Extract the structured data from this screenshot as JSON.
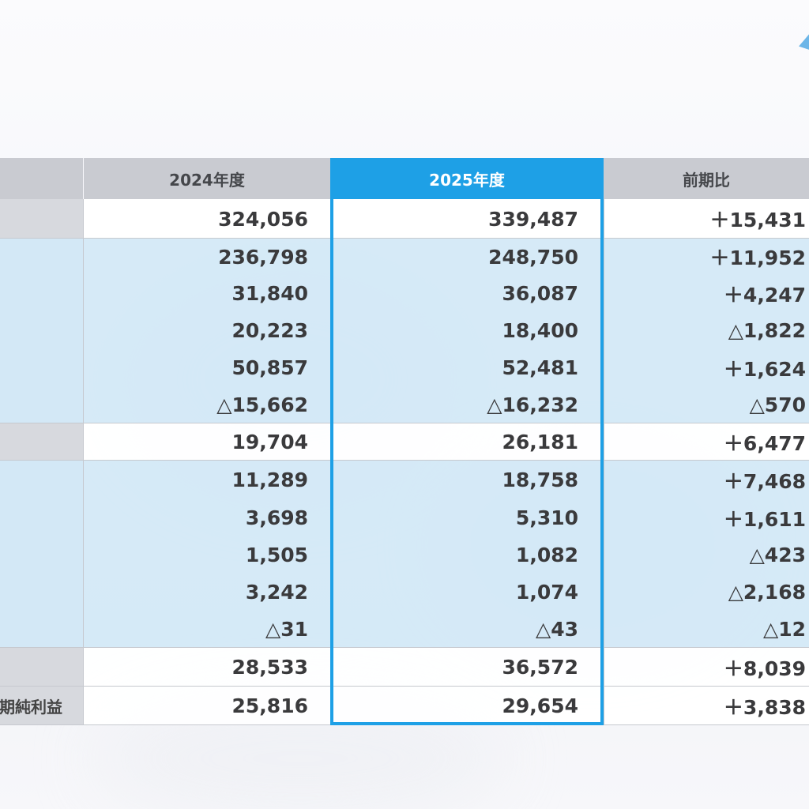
{
  "table": {
    "columns": [
      "",
      "2024年度",
      "2025年度",
      "前期比"
    ],
    "rows": [
      {
        "label": "",
        "y2024": "324,056",
        "y2025": "339,487",
        "diff": "＋15,431",
        "style": "white"
      },
      {
        "label": "",
        "y2024": "236,798",
        "y2025": "248,750",
        "diff": "＋11,952",
        "style": "blue"
      },
      {
        "label": "",
        "y2024": "31,840",
        "y2025": "36,087",
        "diff": "＋4,247",
        "style": "blue"
      },
      {
        "label": "",
        "y2024": "20,223",
        "y2025": "18,400",
        "diff": "△1,822",
        "style": "blue"
      },
      {
        "label": "",
        "y2024": "50,857",
        "y2025": "52,481",
        "diff": "＋1,624",
        "style": "blue"
      },
      {
        "label": "",
        "y2024": "△15,662",
        "y2025": "△16,232",
        "diff": "△570",
        "style": "blue"
      },
      {
        "label": "",
        "y2024": "19,704",
        "y2025": "26,181",
        "diff": "＋6,477",
        "style": "white"
      },
      {
        "label": "",
        "y2024": "11,289",
        "y2025": "18,758",
        "diff": "＋7,468",
        "style": "blue"
      },
      {
        "label": "",
        "y2024": "3,698",
        "y2025": "5,310",
        "diff": "＋1,611",
        "style": "blue"
      },
      {
        "label": "",
        "y2024": "1,505",
        "y2025": "1,082",
        "diff": "△423",
        "style": "blue"
      },
      {
        "label": "",
        "y2024": "3,242",
        "y2025": "1,074",
        "diff": "△2,168",
        "style": "blue"
      },
      {
        "label": "",
        "y2024": "△31",
        "y2025": "△43",
        "diff": "△12",
        "style": "blue"
      },
      {
        "label": "",
        "y2024": "28,533",
        "y2025": "36,572",
        "diff": "＋8,039",
        "style": "white"
      },
      {
        "label": "期純利益",
        "y2024": "25,816",
        "y2025": "29,654",
        "diff": "＋3,838",
        "style": "white"
      }
    ]
  },
  "colors": {
    "highlight": "#1ea0e6",
    "header_bg": "#c9cbd1",
    "band_blue": "#d3e8f6"
  }
}
